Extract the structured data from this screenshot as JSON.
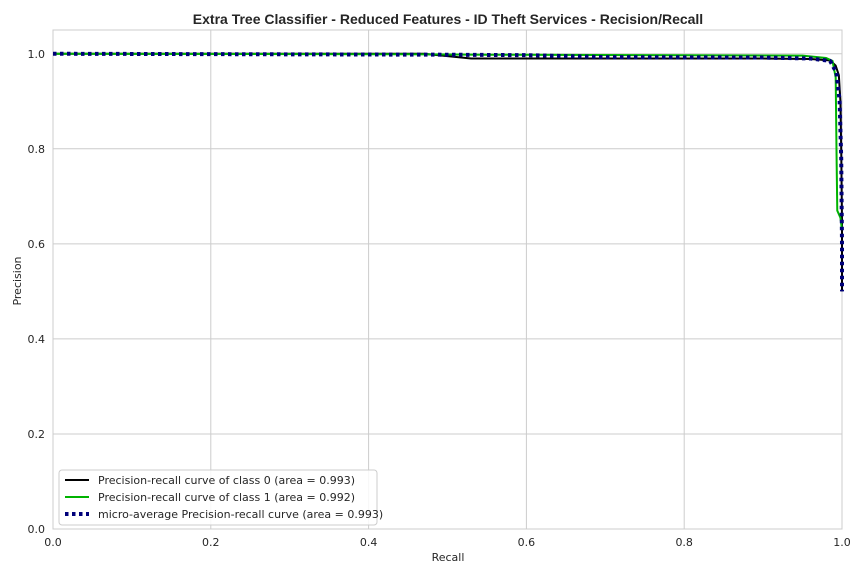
{
  "chart_data": {
    "type": "line",
    "title": "Extra Tree Classifier - Reduced Features - ID Theft Services - Recision/Recall",
    "xlabel": "Recall",
    "ylabel": "Precision",
    "xlim": [
      0.0,
      1.0
    ],
    "ylim": [
      0.0,
      1.05
    ],
    "xticks": [
      0.0,
      0.2,
      0.4,
      0.6,
      0.8,
      1.0
    ],
    "yticks": [
      0.0,
      0.2,
      0.4,
      0.6,
      0.8,
      1.0
    ],
    "xtick_labels": [
      "0.0",
      "0.2",
      "0.4",
      "0.6",
      "0.8",
      "1.0"
    ],
    "ytick_labels": [
      "0.0",
      "0.2",
      "0.4",
      "0.6",
      "0.8",
      "1.0"
    ],
    "grid": true,
    "legend_position": "lower-left",
    "series": [
      {
        "name": "Precision-recall curve of class 0 (area = 0.993)",
        "color": "#000000",
        "style": "solid",
        "points": [
          [
            0.0,
            1.0
          ],
          [
            0.47,
            1.0
          ],
          [
            0.5,
            0.995
          ],
          [
            0.53,
            0.99
          ],
          [
            0.7,
            0.99
          ],
          [
            0.9,
            0.99
          ],
          [
            0.96,
            0.989
          ],
          [
            0.985,
            0.986
          ],
          [
            0.992,
            0.975
          ],
          [
            0.996,
            0.955
          ],
          [
            0.998,
            0.9
          ],
          [
            0.999,
            0.8
          ],
          [
            1.0,
            0.65
          ],
          [
            1.0,
            0.5
          ]
        ]
      },
      {
        "name": "Precision-recall curve of class 1 (area = 0.992)",
        "color": "#00b300",
        "style": "solid",
        "points": [
          [
            0.0,
            1.0
          ],
          [
            0.45,
            0.999
          ],
          [
            0.55,
            0.998
          ],
          [
            0.8,
            0.997
          ],
          [
            0.95,
            0.996
          ],
          [
            0.98,
            0.991
          ],
          [
            0.988,
            0.985
          ],
          [
            0.992,
            0.95
          ],
          [
            0.993,
            0.8
          ],
          [
            0.994,
            0.67
          ],
          [
            0.998,
            0.655
          ],
          [
            1.0,
            0.63
          ]
        ]
      },
      {
        "name": "micro-average Precision-recall curve (area = 0.993)",
        "color": "#00007a",
        "style": "dotted",
        "points": [
          [
            0.0,
            1.0
          ],
          [
            0.5,
            0.998
          ],
          [
            0.6,
            0.997
          ],
          [
            0.7,
            0.993
          ],
          [
            0.9,
            0.992
          ],
          [
            0.96,
            0.99
          ],
          [
            0.985,
            0.985
          ],
          [
            0.993,
            0.96
          ],
          [
            0.997,
            0.9
          ],
          [
            0.999,
            0.78
          ],
          [
            1.0,
            0.6
          ],
          [
            1.0,
            0.5
          ]
        ]
      }
    ]
  }
}
